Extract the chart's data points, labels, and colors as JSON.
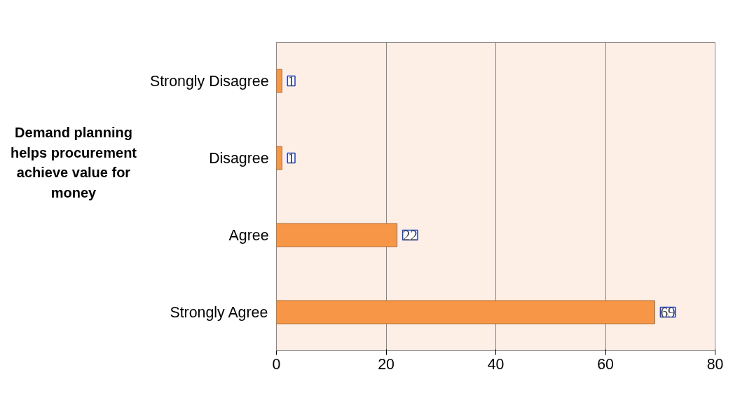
{
  "chart_data": {
    "type": "bar",
    "orientation": "horizontal",
    "ylabel": "Demand planning helps procurement achieve value for money",
    "categories": [
      "Strongly Disagree",
      "Disagree",
      "Agree",
      "Strongly Agree"
    ],
    "values": [
      1,
      1,
      22,
      69
    ],
    "color": "#f79646",
    "xlim": [
      0,
      80
    ],
    "xticks": [
      0,
      20,
      40,
      60,
      80
    ],
    "grid": "x",
    "data_labels": true
  }
}
